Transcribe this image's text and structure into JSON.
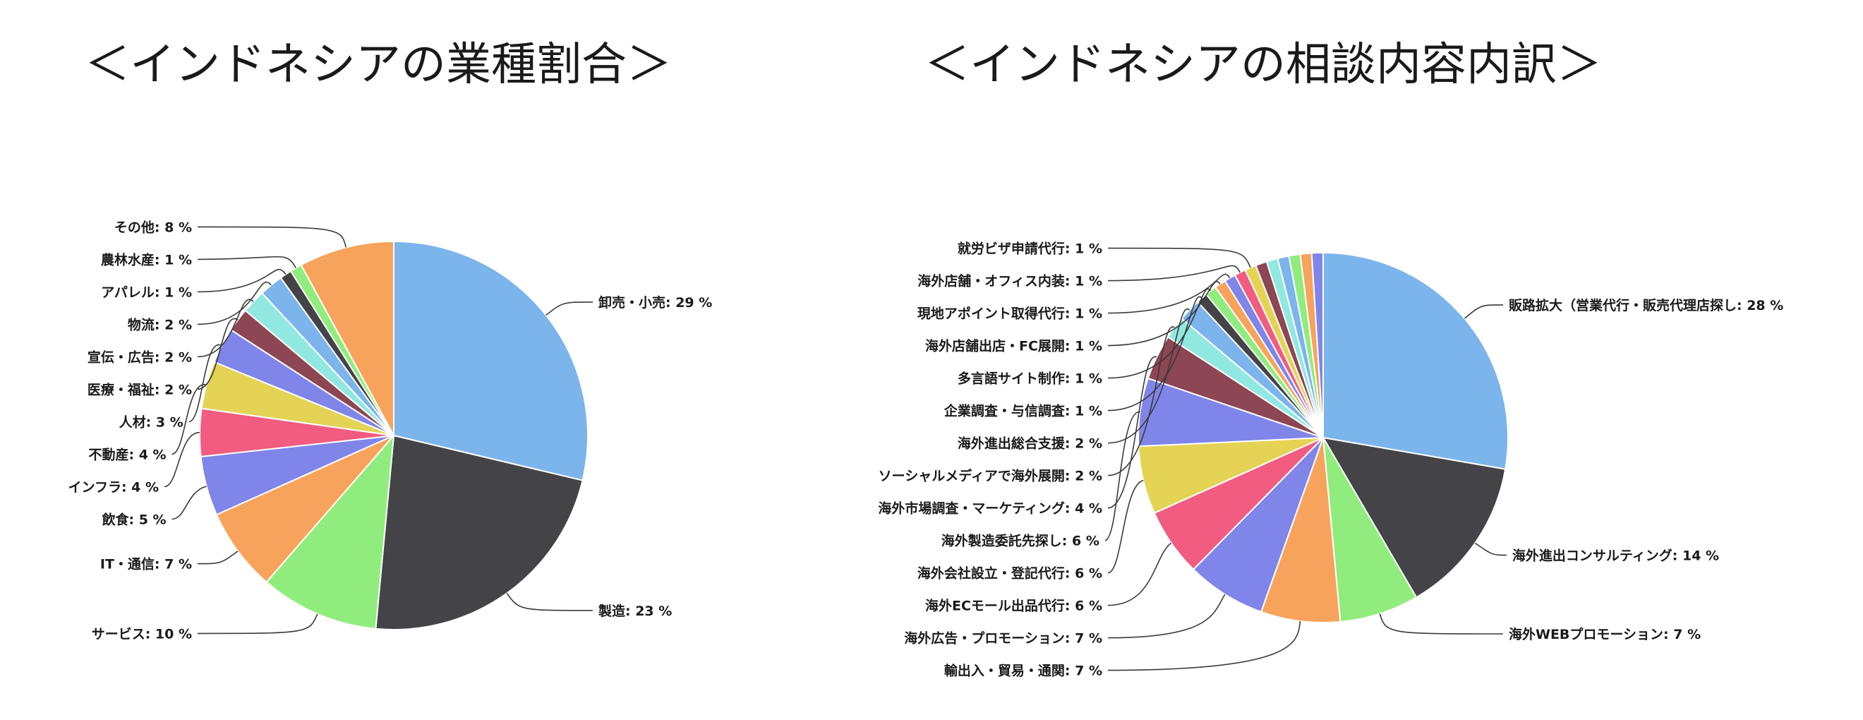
{
  "chart_data": [
    {
      "type": "pie",
      "title": "＜インドネシアの業種割合＞",
      "unit": "%",
      "slices": [
        {
          "label": "卸売・小売",
          "value": 29,
          "color": "#7cb4ec"
        },
        {
          "label": "製造",
          "value": 23,
          "color": "#434348"
        },
        {
          "label": "サービス",
          "value": 10,
          "color": "#90ed7d"
        },
        {
          "label": "IT・通信",
          "value": 7,
          "color": "#f7a35c"
        },
        {
          "label": "飲食",
          "value": 5,
          "color": "#8085e9"
        },
        {
          "label": "インフラ",
          "value": 4,
          "color": "#f15c80"
        },
        {
          "label": "不動産",
          "value": 4,
          "color": "#e4d354"
        },
        {
          "label": "人材",
          "value": 3,
          "color": "#8085e9"
        },
        {
          "label": "医療・福祉",
          "value": 2,
          "color": "#8d4653"
        },
        {
          "label": "宣伝・広告",
          "value": 2,
          "color": "#91e8e1"
        },
        {
          "label": "物流",
          "value": 2,
          "color": "#7cb4ec"
        },
        {
          "label": "アパレル",
          "value": 1,
          "color": "#434348"
        },
        {
          "label": "農林水産",
          "value": 1,
          "color": "#90ed7d"
        },
        {
          "label": "その他",
          "value": 8,
          "color": "#f7a35c"
        }
      ]
    },
    {
      "type": "pie",
      "title": "＜インドネシアの相談内容内訳＞",
      "unit": "%",
      "slices": [
        {
          "label": "販路拡大（営業代行・販売代理店探し",
          "value": 28,
          "color": "#7cb4ec"
        },
        {
          "label": "海外進出コンサルティング",
          "value": 14,
          "color": "#434348"
        },
        {
          "label": "海外WEBプロモーション",
          "value": 7,
          "color": "#90ed7d"
        },
        {
          "label": "輸出入・貿易・通関",
          "value": 7,
          "color": "#f7a35c"
        },
        {
          "label": "海外広告・プロモーション",
          "value": 7,
          "color": "#8085e9"
        },
        {
          "label": "海外ECモール出品代行",
          "value": 6,
          "color": "#f15c80"
        },
        {
          "label": "海外会社設立・登記代行",
          "value": 6,
          "color": "#e4d354"
        },
        {
          "label": "海外製造委託先探し",
          "value": 6,
          "color": "#8085e9"
        },
        {
          "label": "海外市場調査・マーケティング",
          "value": 4,
          "color": "#8d4653"
        },
        {
          "label": "ソーシャルメディアで海外展開",
          "value": 2,
          "color": "#91e8e1"
        },
        {
          "label": "海外進出総合支援",
          "value": 2,
          "color": "#7cb4ec"
        },
        {
          "label": "企業調査・与信調査",
          "value": 1,
          "color": "#434348"
        },
        {
          "label": "多言語サイト制作",
          "value": 1,
          "color": "#90ed7d"
        },
        {
          "label": "海外店舗出店・FC展開",
          "value": 1,
          "color": "#f7a35c"
        },
        {
          "label": "現地アポイント取得代行",
          "value": 1,
          "color": "#8085e9"
        },
        {
          "label": "海外店舗・オフィス内装",
          "value": 1,
          "color": "#f15c80"
        },
        {
          "label": "就労ビザ申請代行",
          "value": 1,
          "color": "#e4d354"
        },
        {
          "value": 1,
          "color": "#8d4653"
        },
        {
          "value": 1,
          "color": "#91e8e1"
        },
        {
          "value": 1,
          "color": "#7cb4ec"
        },
        {
          "value": 1,
          "color": "#90ed7d"
        },
        {
          "value": 1,
          "color": "#f7a35c"
        },
        {
          "value": 1,
          "color": "#8085e9"
        }
      ]
    }
  ]
}
